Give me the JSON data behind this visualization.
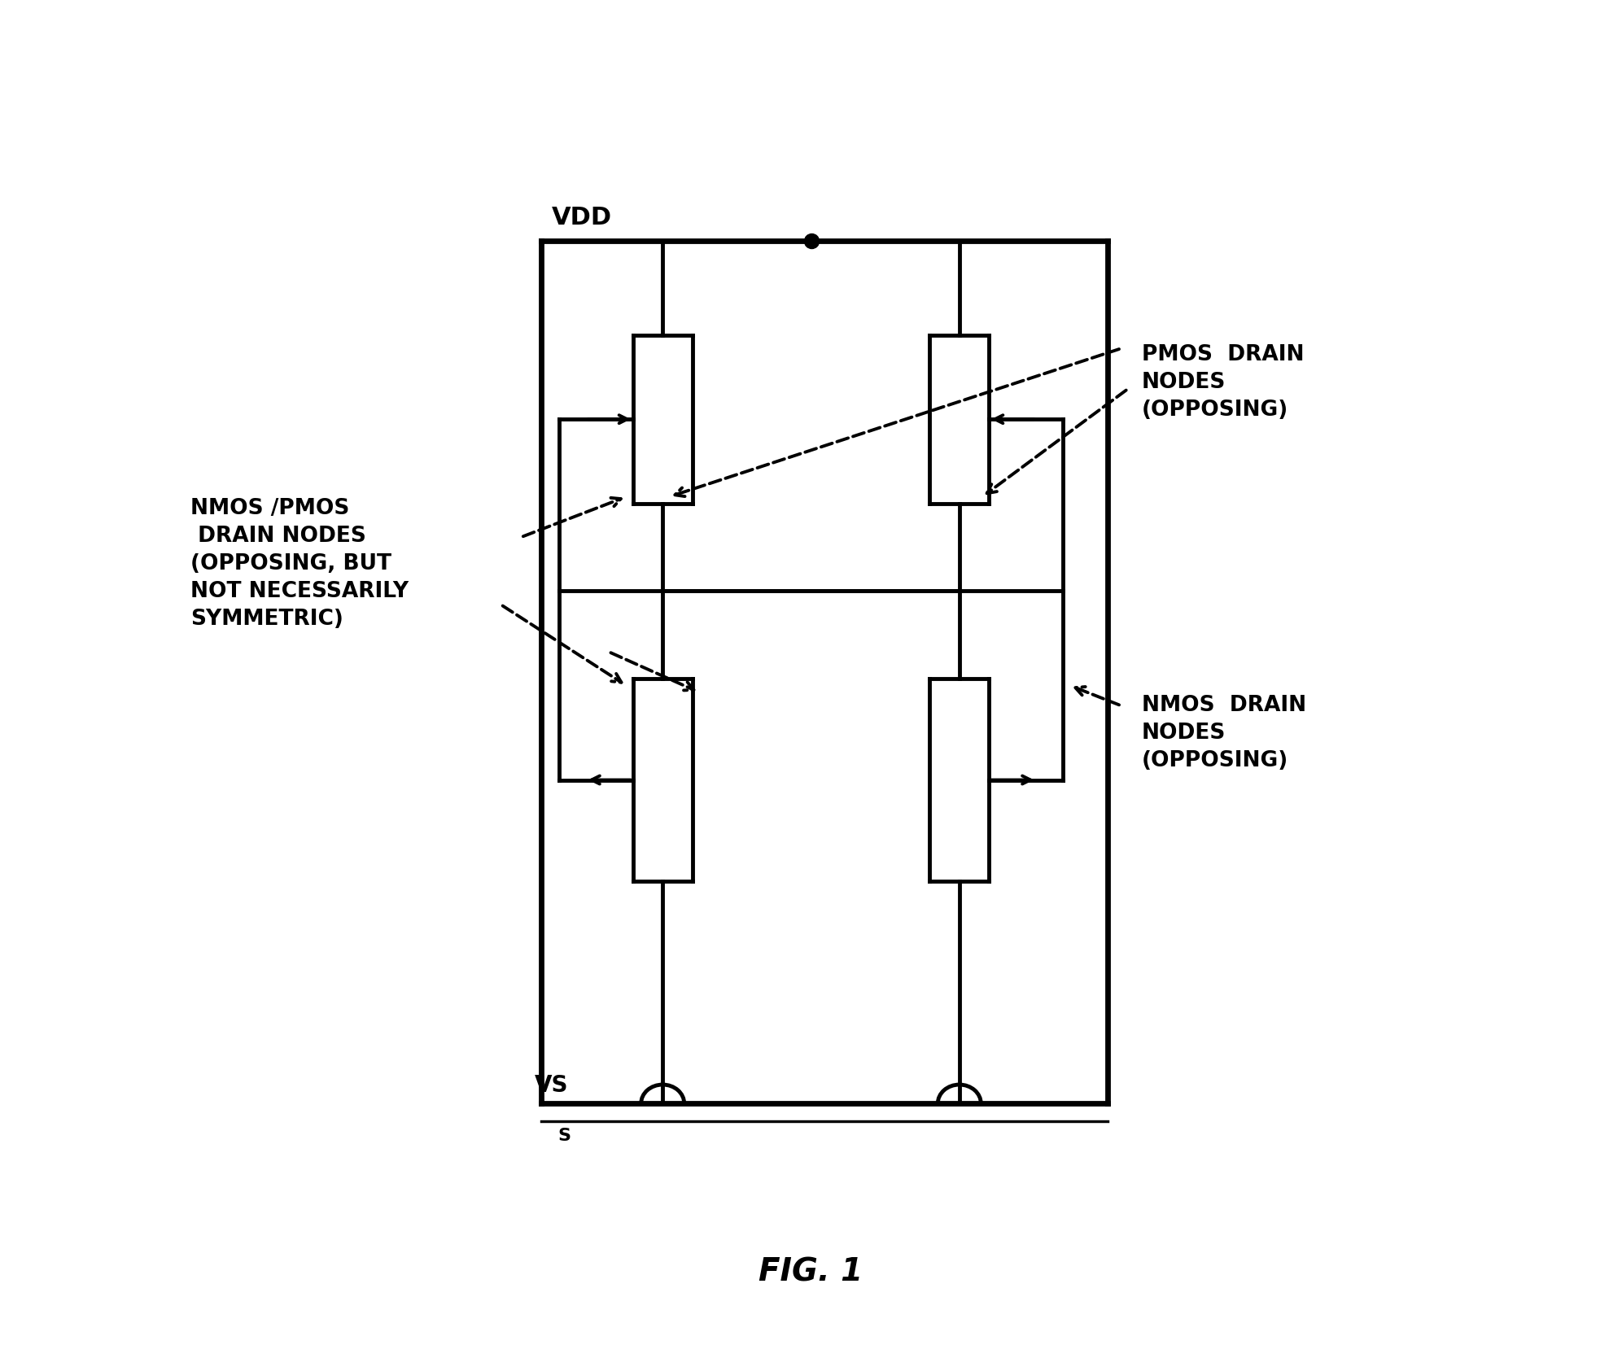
{
  "title": "FIG. 1",
  "vdd_label": "VDD",
  "vs_label": "VS",
  "vs_label2": "S",
  "label_pmos_drain": "PMOS  DRAIN\nNODES\n(OPPOSING)",
  "label_nmos_drain": "NMOS  DRAIN\nNODES\n(OPPOSING)",
  "label_nmos_pmos": "NMOS /PMOS\n DRAIN NODES\n(OPPOSING, BUT\nNOT NECESSARILY\nSYMMETRIC)",
  "bg_color": "#ffffff",
  "line_color": "#000000",
  "lw": 3.5,
  "fig_width": 19.93,
  "fig_height": 16.85
}
